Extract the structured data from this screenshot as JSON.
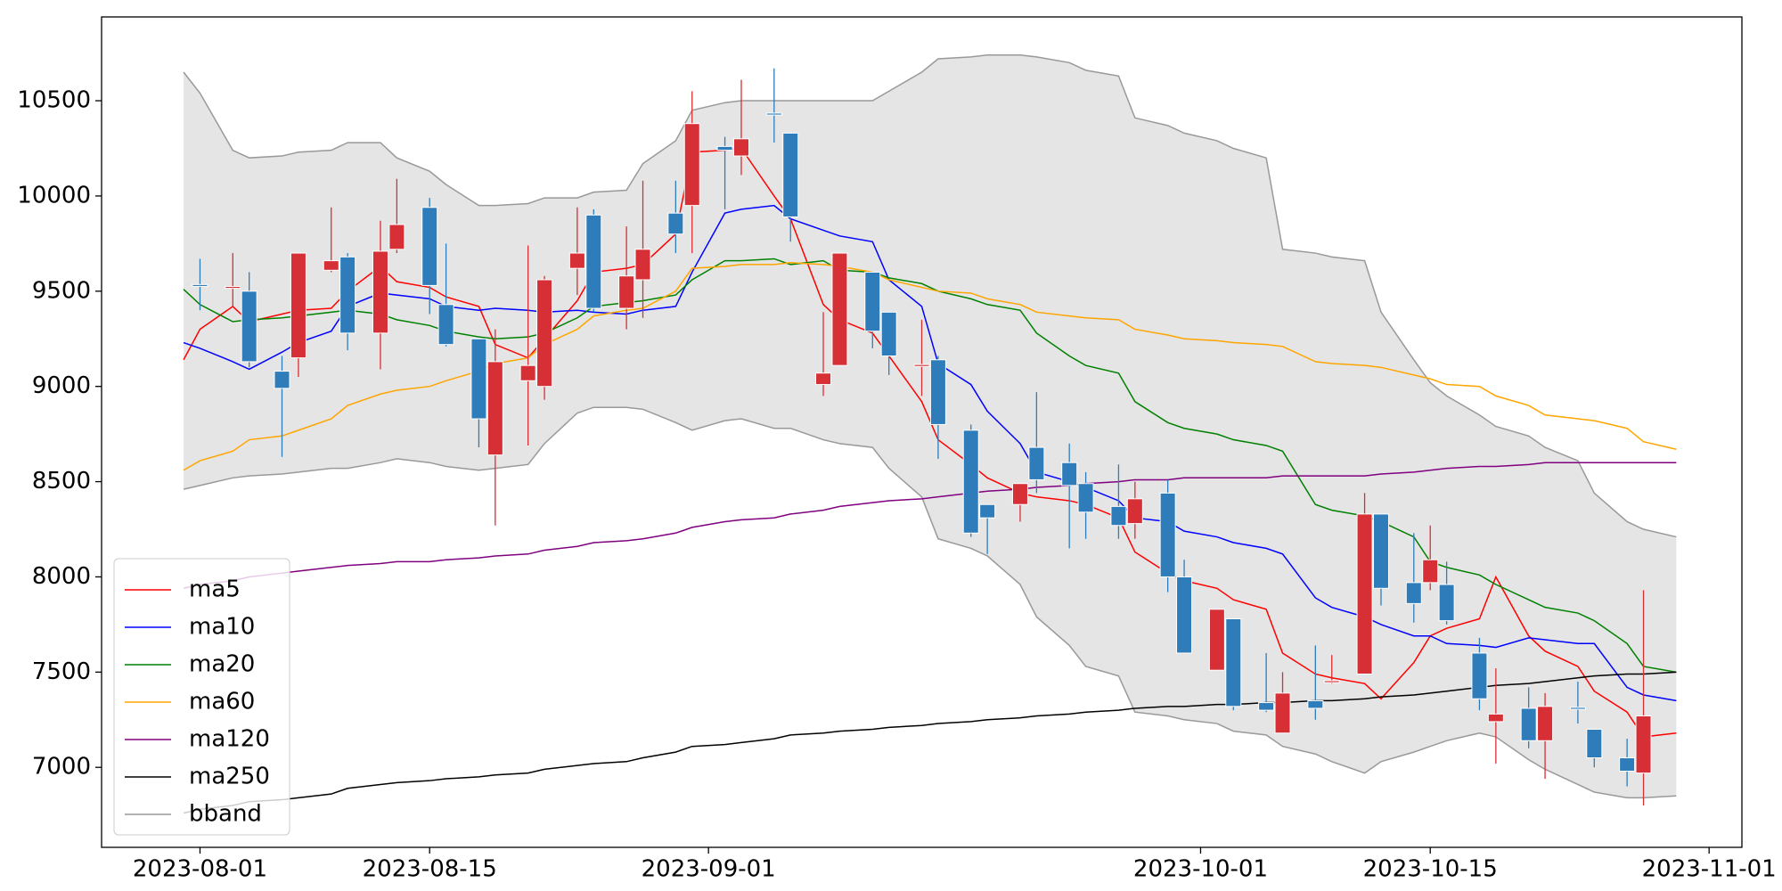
{
  "chart_data": {
    "type": "candlestick",
    "x": [
      "2023-07-31",
      "2023-08-01",
      "2023-08-03",
      "2023-08-04",
      "2023-08-06",
      "2023-08-07",
      "2023-08-09",
      "2023-08-10",
      "2023-08-12",
      "2023-08-13",
      "2023-08-15",
      "2023-08-16",
      "2023-08-18",
      "2023-08-19",
      "2023-08-21",
      "2023-08-22",
      "2023-08-24",
      "2023-08-25",
      "2023-08-27",
      "2023-08-28",
      "2023-08-30",
      "2023-08-31",
      "2023-09-02",
      "2023-09-03",
      "2023-09-05",
      "2023-09-06",
      "2023-09-08",
      "2023-09-09",
      "2023-09-11",
      "2023-09-12",
      "2023-09-14",
      "2023-09-15",
      "2023-09-17",
      "2023-09-18",
      "2023-09-20",
      "2023-09-21",
      "2023-09-23",
      "2023-09-24",
      "2023-09-26",
      "2023-09-27",
      "2023-09-29",
      "2023-09-30",
      "2023-10-02",
      "2023-10-03",
      "2023-10-05",
      "2023-10-06",
      "2023-10-08",
      "2023-10-09",
      "2023-10-11",
      "2023-10-12",
      "2023-10-14",
      "2023-10-15",
      "2023-10-16",
      "2023-10-18",
      "2023-10-19",
      "2023-10-21",
      "2023-10-22",
      "2023-10-24",
      "2023-10-25",
      "2023-10-27",
      "2023-10-28",
      "2023-10-30"
    ],
    "open": [
      null,
      9535,
      9515,
      9500,
      9080,
      9150,
      9610,
      9680,
      9280,
      9720,
      9940,
      9430,
      9250,
      8640,
      9030,
      9000,
      9620,
      9900,
      9410,
      9560,
      9910,
      9950,
      10260,
      10210,
      10435,
      10330,
      9010,
      9110,
      9600,
      9390,
      9105,
      9140,
      8770,
      8380,
      8380,
      8680,
      8600,
      8490,
      8370,
      8280,
      8440,
      8000,
      7510,
      7780,
      7340,
      7180,
      7350,
      7445,
      7490,
      8330,
      7970,
      7970,
      7960,
      7600,
      7240,
      7310,
      7140,
      7315,
      7200,
      7050,
      6970,
      null
    ],
    "high": [
      null,
      9670,
      9700,
      9600,
      9160,
      9700,
      9940,
      9700,
      9870,
      10090,
      9990,
      9750,
      9250,
      9300,
      9740,
      9580,
      9940,
      9930,
      9840,
      10080,
      10080,
      10550,
      10310,
      10610,
      10670,
      10330,
      9390,
      9700,
      9600,
      9390,
      9350,
      9160,
      8800,
      8380,
      8490,
      8970,
      8700,
      8550,
      8590,
      8500,
      8510,
      8090,
      7830,
      7780,
      7600,
      7500,
      7640,
      7590,
      8440,
      8330,
      8230,
      8270,
      8080,
      7680,
      7520,
      7420,
      7390,
      7450,
      7200,
      7150,
      7930,
      null
    ],
    "low": [
      null,
      9400,
      9420,
      9100,
      8630,
      9050,
      9600,
      9190,
      9090,
      9700,
      9380,
      9210,
      8680,
      8270,
      8690,
      8930,
      9480,
      9390,
      9300,
      9360,
      9700,
      9700,
      9930,
      10110,
      10280,
      9760,
      8950,
      9110,
      9200,
      9060,
      8950,
      8620,
      8210,
      8120,
      8290,
      8440,
      8150,
      8200,
      8200,
      8200,
      7920,
      7600,
      7510,
      7300,
      7290,
      7180,
      7250,
      7440,
      7490,
      7850,
      7760,
      7930,
      7750,
      7300,
      7020,
      7100,
      6940,
      7230,
      7000,
      6900,
      6800,
      null
    ],
    "close": [
      null,
      9525,
      9525,
      9130,
      8990,
      9700,
      9660,
      9280,
      9710,
      9850,
      9530,
      9220,
      8830,
      9130,
      9110,
      9560,
      9700,
      9410,
      9580,
      9720,
      9800,
      10380,
      10240,
      10300,
      10425,
      9890,
      9070,
      9700,
      9290,
      9160,
      9115,
      8800,
      8230,
      8310,
      8490,
      8510,
      8480,
      8340,
      8270,
      8410,
      8000,
      7600,
      7830,
      7320,
      7300,
      7390,
      7310,
      7455,
      8330,
      7940,
      7860,
      8090,
      7770,
      7360,
      7280,
      7140,
      7320,
      7305,
      7050,
      6980,
      7270,
      null
    ],
    "up_color": "#d62f35",
    "down_color": "#2e7dba",
    "series": [
      {
        "name": "ma5",
        "color": "#ff0000",
        "values": [
          9140,
          9300,
          9420,
          9340,
          9380,
          9400,
          9410,
          9500,
          9630,
          9550,
          9520,
          9470,
          9420,
          9220,
          9150,
          9250,
          9450,
          9600,
          9620,
          9640,
          9800,
          10230,
          10240,
          10250,
          10000,
          9880,
          9430,
          9350,
          9280,
          9160,
          8920,
          8720,
          8590,
          8520,
          8440,
          8420,
          8400,
          8380,
          8310,
          8130,
          8020,
          7980,
          7940,
          7880,
          7830,
          7600,
          7490,
          7470,
          7440,
          7360,
          7550,
          7690,
          7730,
          7780,
          8000,
          7690,
          7610,
          7530,
          7400,
          7290,
          7160,
          7180
        ]
      },
      {
        "name": "ma10",
        "color": "#0000ff",
        "values": [
          9230,
          9200,
          9130,
          9090,
          9180,
          9230,
          9290,
          9420,
          9490,
          9480,
          9460,
          9420,
          9400,
          9410,
          9400,
          9390,
          9400,
          9390,
          9380,
          9400,
          9420,
          9600,
          9910,
          9930,
          9950,
          9880,
          9820,
          9790,
          9760,
          9560,
          9420,
          9120,
          9010,
          8870,
          8700,
          8550,
          8500,
          8470,
          8400,
          8310,
          8290,
          8240,
          8210,
          8180,
          8150,
          8120,
          7890,
          7840,
          7790,
          7750,
          7690,
          7690,
          7650,
          7640,
          7630,
          7680,
          7670,
          7650,
          7650,
          7420,
          7380,
          7350
        ]
      },
      {
        "name": "ma20",
        "color": "#008000",
        "values": [
          9510,
          9430,
          9340,
          9350,
          9360,
          9370,
          9390,
          9400,
          9380,
          9350,
          9320,
          9290,
          9260,
          9250,
          9260,
          9280,
          9360,
          9420,
          9440,
          9450,
          9480,
          9560,
          9660,
          9660,
          9670,
          9640,
          9660,
          9610,
          9600,
          9570,
          9540,
          9500,
          9460,
          9430,
          9400,
          9280,
          9160,
          9110,
          9070,
          8920,
          8810,
          8780,
          8750,
          8720,
          8690,
          8660,
          8380,
          8350,
          8320,
          8290,
          8210,
          8080,
          8050,
          8010,
          7960,
          7880,
          7840,
          7810,
          7770,
          7650,
          7530,
          7500
        ]
      },
      {
        "name": "ma60",
        "color": "#ffa500",
        "values": [
          8560,
          8610,
          8660,
          8720,
          8740,
          8770,
          8830,
          8900,
          8960,
          8980,
          9000,
          9030,
          9080,
          9120,
          9150,
          9220,
          9300,
          9370,
          9400,
          9410,
          9500,
          9620,
          9630,
          9640,
          9640,
          9650,
          9640,
          9630,
          9600,
          9560,
          9520,
          9500,
          9490,
          9460,
          9430,
          9390,
          9370,
          9360,
          9350,
          9300,
          9270,
          9250,
          9240,
          9230,
          9220,
          9210,
          9130,
          9120,
          9110,
          9100,
          9060,
          9040,
          9010,
          9000,
          8950,
          8900,
          8850,
          8830,
          8820,
          8780,
          8710,
          8670
        ]
      },
      {
        "name": "ma120",
        "color": "#800080",
        "values": [
          7940,
          7960,
          7980,
          8000,
          8020,
          8030,
          8050,
          8060,
          8070,
          8080,
          8080,
          8090,
          8100,
          8110,
          8120,
          8140,
          8160,
          8180,
          8190,
          8200,
          8230,
          8260,
          8290,
          8300,
          8310,
          8330,
          8350,
          8370,
          8390,
          8400,
          8410,
          8420,
          8440,
          8450,
          8460,
          8470,
          8480,
          8490,
          8500,
          8510,
          8510,
          8520,
          8520,
          8520,
          8520,
          8530,
          8530,
          8530,
          8530,
          8540,
          8550,
          8560,
          8570,
          8580,
          8580,
          8590,
          8600,
          8600,
          8600,
          8600,
          8600,
          8600
        ]
      },
      {
        "name": "ma250",
        "color": "#000000",
        "values": [
          6760,
          6780,
          6800,
          6820,
          6830,
          6840,
          6860,
          6890,
          6910,
          6920,
          6930,
          6940,
          6950,
          6960,
          6970,
          6990,
          7010,
          7020,
          7030,
          7050,
          7080,
          7110,
          7120,
          7130,
          7150,
          7170,
          7180,
          7190,
          7200,
          7210,
          7220,
          7230,
          7240,
          7250,
          7260,
          7270,
          7280,
          7290,
          7300,
          7310,
          7320,
          7320,
          7330,
          7330,
          7340,
          7340,
          7350,
          7350,
          7360,
          7370,
          7380,
          7390,
          7400,
          7420,
          7430,
          7440,
          7450,
          7470,
          7480,
          7490,
          7490,
          7500
        ]
      },
      {
        "name": "bband",
        "color": "#999999",
        "fill": "#e5e5e5",
        "upper": [
          10650,
          10540,
          10240,
          10200,
          10210,
          10230,
          10240,
          10280,
          10280,
          10200,
          10130,
          10060,
          9950,
          9950,
          9960,
          9990,
          9990,
          10020,
          10030,
          10170,
          10290,
          10450,
          10490,
          10500,
          10500,
          10500,
          10500,
          10500,
          10500,
          10550,
          10650,
          10720,
          10730,
          10740,
          10740,
          10730,
          10700,
          10660,
          10630,
          10410,
          10370,
          10330,
          10290,
          10250,
          10200,
          9720,
          9700,
          9680,
          9660,
          9390,
          9140,
          9020,
          8950,
          8850,
          8790,
          8740,
          8680,
          8610,
          8440,
          8290,
          8250,
          8210
        ],
        "lower": [
          8460,
          8480,
          8520,
          8530,
          8540,
          8550,
          8570,
          8570,
          8600,
          8620,
          8600,
          8580,
          8560,
          8570,
          8590,
          8700,
          8860,
          8890,
          8890,
          8880,
          8810,
          8770,
          8820,
          8830,
          8780,
          8780,
          8720,
          8700,
          8680,
          8570,
          8420,
          8200,
          8150,
          8110,
          7960,
          7790,
          7640,
          7530,
          7480,
          7290,
          7270,
          7250,
          7230,
          7190,
          7170,
          7110,
          7070,
          7030,
          6970,
          7030,
          7080,
          7110,
          7140,
          7180,
          7160,
          7040,
          6990,
          6910,
          6870,
          6840,
          6840,
          6850
        ]
      }
    ],
    "xlim": [
      "2023-07-26",
      "2023-11-03"
    ],
    "xticks": [
      "2023-08-01",
      "2023-08-15",
      "2023-09-01",
      "2023-10-01",
      "2023-10-15",
      "2023-11-01"
    ],
    "ylim": [
      6580,
      10940
    ],
    "yticks": [
      7000,
      7500,
      8000,
      8500,
      9000,
      9500,
      10000,
      10500
    ],
    "legend": "lower left"
  }
}
